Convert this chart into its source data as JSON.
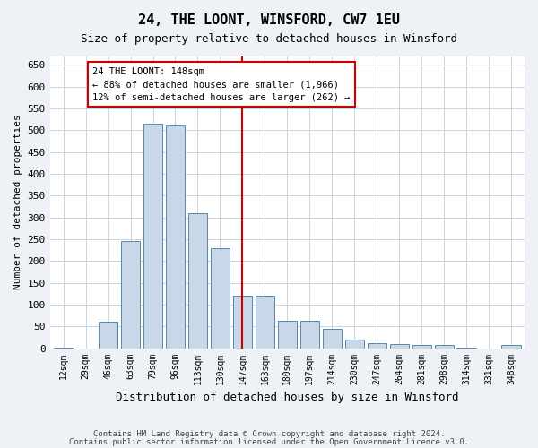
{
  "title": "24, THE LOONT, WINSFORD, CW7 1EU",
  "subtitle": "Size of property relative to detached houses in Winsford",
  "xlabel": "Distribution of detached houses by size in Winsford",
  "ylabel": "Number of detached properties",
  "bar_labels": [
    "12sqm",
    "29sqm",
    "46sqm",
    "63sqm",
    "79sqm",
    "96sqm",
    "113sqm",
    "130sqm",
    "147sqm",
    "163sqm",
    "180sqm",
    "197sqm",
    "214sqm",
    "230sqm",
    "247sqm",
    "264sqm",
    "281sqm",
    "298sqm",
    "314sqm",
    "331sqm",
    "348sqm"
  ],
  "bar_values": [
    2,
    0,
    60,
    245,
    515,
    510,
    310,
    230,
    120,
    120,
    63,
    63,
    45,
    20,
    12,
    10,
    8,
    7,
    1,
    0,
    7
  ],
  "bar_color": "#c8d8e8",
  "bar_edge_color": "#5588aa",
  "marker_idx": 8,
  "marker_line_color": "#cc0000",
  "annotation_text": "24 THE LOONT: 148sqm\n← 88% of detached houses are smaller (1,966)\n12% of semi-detached houses are larger (262) →",
  "annotation_box_color": "#cc0000",
  "ylim": [
    0,
    670
  ],
  "yticks": [
    0,
    50,
    100,
    150,
    200,
    250,
    300,
    350,
    400,
    450,
    500,
    550,
    600,
    650
  ],
  "footer1": "Contains HM Land Registry data © Crown copyright and database right 2024.",
  "footer2": "Contains public sector information licensed under the Open Government Licence v3.0.",
  "bg_color": "#eef2f7",
  "plot_bg_color": "#ffffff",
  "grid_color": "#c8d4e0"
}
